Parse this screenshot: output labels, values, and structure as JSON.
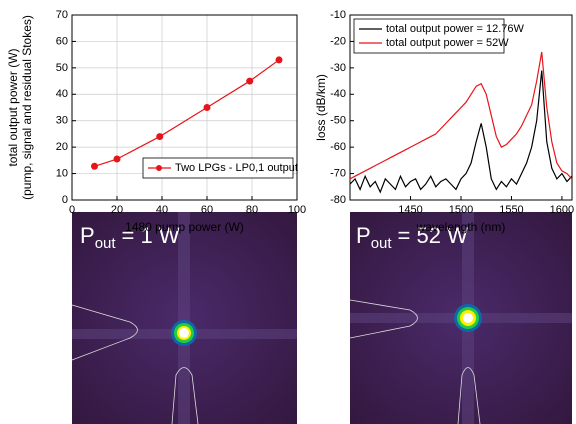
{
  "chart_data": [
    {
      "type": "line",
      "marker": "circle",
      "xlabel": "1480 pump power (W)",
      "ylabel": [
        "total output power (W)",
        "(pump, signal and residual Stokes)"
      ],
      "x": [
        10,
        20,
        39,
        60,
        79,
        92
      ],
      "series": [
        {
          "name": "Two LPGs - LP0,1 output",
          "color": "#e8141b",
          "values": [
            12.76,
            15.5,
            24,
            35,
            45,
            53
          ]
        }
      ],
      "xlim": [
        0,
        100
      ],
      "xticks": [
        0,
        20,
        40,
        60,
        80,
        100
      ],
      "ylim": [
        0,
        70
      ],
      "yticks": [
        0,
        10,
        20,
        30,
        40,
        50,
        60,
        70
      ],
      "grid": true,
      "legend": "lower right"
    },
    {
      "type": "line",
      "xlabel": "wavelength (nm)",
      "ylabel": [
        "loss (dB/km)"
      ],
      "x": [
        1390,
        1395,
        1400,
        1405,
        1410,
        1415,
        1420,
        1425,
        1430,
        1435,
        1440,
        1445,
        1450,
        1455,
        1460,
        1465,
        1470,
        1475,
        1480,
        1485,
        1490,
        1495,
        1500,
        1505,
        1510,
        1515,
        1520,
        1525,
        1530,
        1535,
        1540,
        1545,
        1550,
        1555,
        1560,
        1565,
        1570,
        1575,
        1580,
        1585,
        1590,
        1595,
        1600,
        1605,
        1610
      ],
      "series": [
        {
          "name": "total output power = 12.76W",
          "color": "#000000",
          "values": [
            -74,
            -72,
            -76,
            -71,
            -75,
            -73,
            -77,
            -72,
            -74,
            -76,
            -71,
            -75,
            -73,
            -72,
            -76,
            -74,
            -71,
            -75,
            -73,
            -72,
            -74,
            -76,
            -72,
            -70,
            -66,
            -58,
            -51,
            -60,
            -72,
            -76,
            -73,
            -75,
            -72,
            -74,
            -70,
            -66,
            -60,
            -50,
            -31,
            -58,
            -68,
            -72,
            -70,
            -73,
            -71
          ]
        },
        {
          "name": "total output power = 52W",
          "color": "#e8141b",
          "values": [
            -72,
            -71,
            -70,
            -69,
            -68,
            -67,
            -66,
            -65,
            -64,
            -63,
            -62,
            -61,
            -60,
            -59,
            -58,
            -57,
            -56,
            -55,
            -53,
            -51,
            -49,
            -47,
            -45,
            -43,
            -40,
            -37,
            -36,
            -40,
            -48,
            -56,
            -60,
            -59,
            -57,
            -55,
            -52,
            -48,
            -44,
            -35,
            -24,
            -45,
            -58,
            -66,
            -69,
            -70,
            -72
          ]
        }
      ],
      "xlim": [
        1390,
        1610
      ],
      "xticks": [
        1450,
        1500,
        1550,
        1600
      ],
      "ylim": [
        -80,
        -10
      ],
      "yticks": [
        -80,
        -70,
        -60,
        -50,
        -40,
        -30,
        -20,
        -10
      ],
      "grid": false,
      "legend": "upper left"
    }
  ],
  "images": [
    {
      "label": {
        "base": "P",
        "sub": "out",
        "rest": "= 1 W"
      }
    },
    {
      "label": {
        "base": "P",
        "sub": "out",
        "rest": "= 52 W"
      }
    }
  ]
}
